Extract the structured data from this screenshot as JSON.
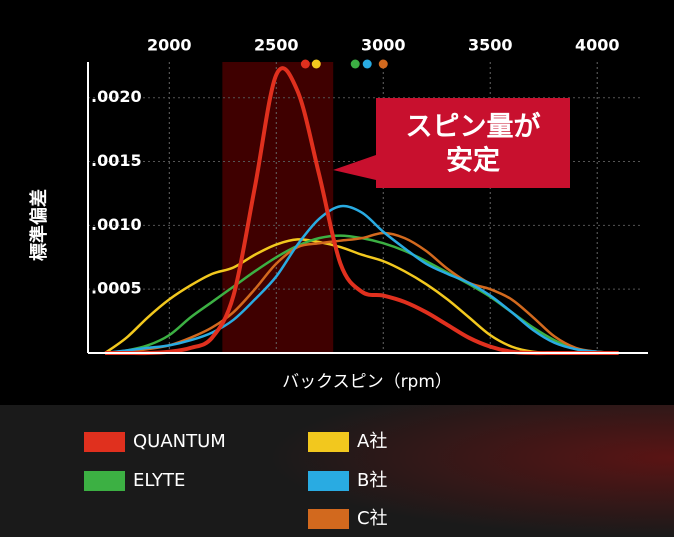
{
  "chart_data": {
    "type": "line",
    "y_label": "標準偏差",
    "x_label": "バックスピン（rpm）",
    "annotation": [
      "スピン量が",
      "安定"
    ],
    "highlight": [
      2248,
      2766
    ],
    "xlim": [
      1620,
      4200
    ],
    "xticks": [
      2000,
      2500,
      3000,
      3500,
      4000
    ],
    "ylim": [
      0,
      0.00228
    ],
    "yticks": [
      {
        "value": 0.0005,
        "label": ".0005"
      },
      {
        "value": 0.001,
        "label": ".0010"
      },
      {
        "value": 0.0015,
        "label": ".0015"
      },
      {
        "value": 0.002,
        "label": ".0020"
      }
    ],
    "grid": true,
    "x": [
      1700,
      1800,
      1900,
      2000,
      2100,
      2200,
      2300,
      2400,
      2500,
      2600,
      2700,
      2800,
      2900,
      3000,
      3100,
      3200,
      3300,
      3400,
      3500,
      3600,
      3700,
      3800,
      3900,
      4000,
      4100
    ],
    "series": [
      {
        "name": "QUANTUM",
        "color": "#e0301e",
        "peak": 2636,
        "values": [
          0,
          0,
          0,
          1e-05,
          4e-05,
          0.00012,
          0.00045,
          0.0013,
          0.00218,
          0.00205,
          0.0014,
          0.0007,
          0.00048,
          0.00045,
          0.0004,
          0.00032,
          0.00022,
          0.00012,
          5e-05,
          1e-05,
          0,
          0,
          0,
          0,
          0
        ]
      },
      {
        "name": "ELYTE",
        "color": "#3cb043",
        "peak": 2869,
        "values": [
          0,
          2e-05,
          6e-05,
          0.00014,
          0.00028,
          0.0004,
          0.00052,
          0.00064,
          0.00075,
          0.00084,
          0.0009,
          0.00092,
          0.0009,
          0.00086,
          0.0008,
          0.00072,
          0.00063,
          0.00054,
          0.00044,
          0.00032,
          0.0002,
          0.0001,
          3e-05,
          1e-05,
          0
        ]
      },
      {
        "name": "A社",
        "color": "#f2c81e",
        "peak": 2687,
        "values": [
          0,
          0.00012,
          0.00028,
          0.00042,
          0.00053,
          0.00062,
          0.00067,
          0.00077,
          0.00085,
          0.00089,
          0.00087,
          0.00083,
          0.00077,
          0.00072,
          0.00064,
          0.00054,
          0.00042,
          0.00028,
          0.00014,
          5e-05,
          1e-05,
          0,
          0,
          0,
          0
        ]
      },
      {
        "name": "B社",
        "color": "#29abe2",
        "peak": 2925,
        "values": [
          0,
          2e-05,
          4e-05,
          6e-05,
          0.0001,
          0.00016,
          0.00026,
          0.00042,
          0.0006,
          0.00085,
          0.00105,
          0.00115,
          0.0011,
          0.00095,
          0.00082,
          0.0007,
          0.00062,
          0.00055,
          0.00045,
          0.00032,
          0.00018,
          8e-05,
          3e-05,
          1e-05,
          0
        ]
      },
      {
        "name": "C社",
        "color": "#d2691e",
        "peak": 3000,
        "values": [
          0,
          1e-05,
          3e-05,
          6e-05,
          0.00012,
          0.0002,
          0.00032,
          0.0005,
          0.0007,
          0.00083,
          0.00086,
          0.00088,
          0.0009,
          0.00094,
          0.0009,
          0.0008,
          0.00066,
          0.00055,
          0.0005,
          0.00042,
          0.00028,
          0.00013,
          4e-05,
          1e-05,
          0
        ]
      }
    ]
  }
}
